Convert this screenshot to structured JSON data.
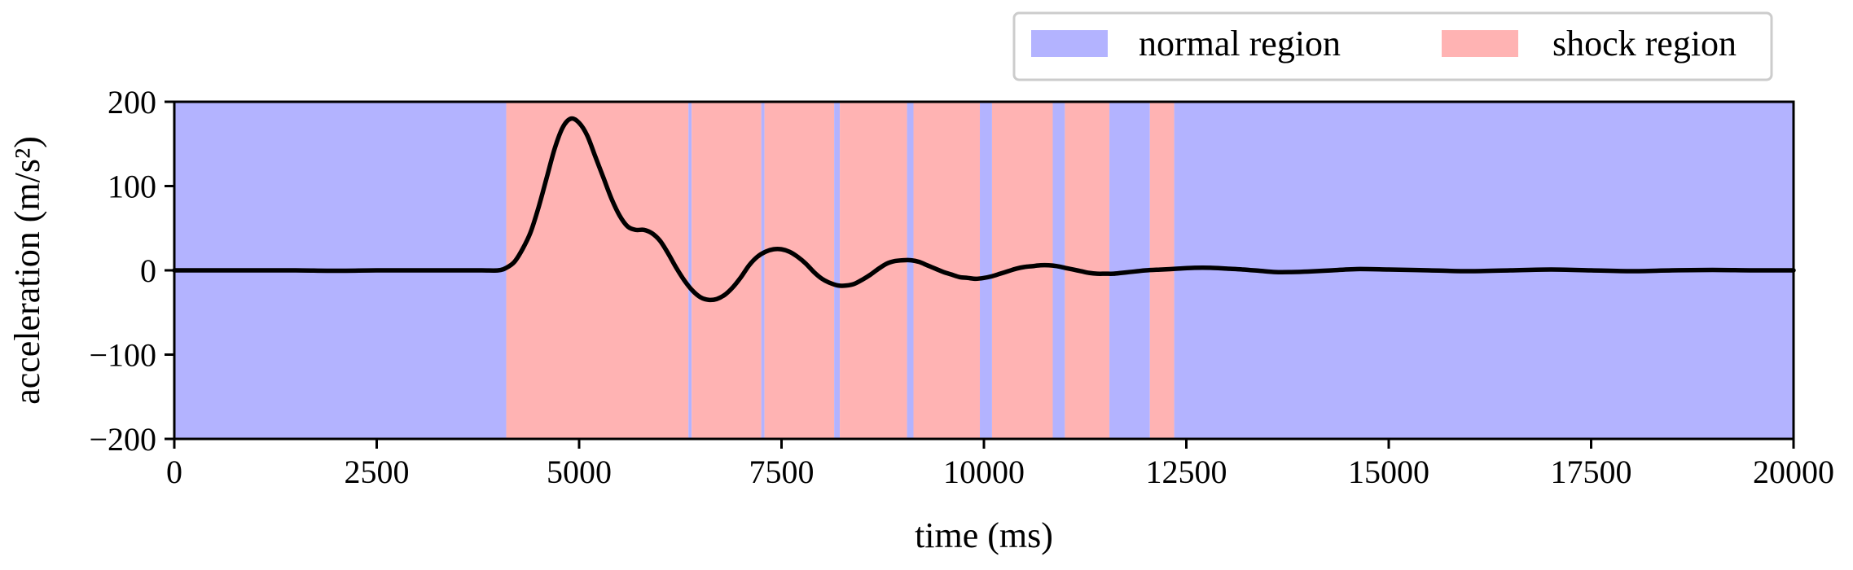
{
  "chart_data": {
    "type": "line",
    "xlabel": "time (ms)",
    "ylabel": "acceleration (m/s²)",
    "xlim": [
      0,
      20000
    ],
    "ylim": [
      -200,
      200
    ],
    "x_ticks": [
      0,
      2500,
      5000,
      7500,
      10000,
      12500,
      15000,
      17500,
      20000
    ],
    "y_ticks": [
      -200,
      -100,
      0,
      100,
      200
    ],
    "x_tick_labels": [
      "0",
      "2500",
      "5000",
      "7500",
      "10000",
      "12500",
      "15000",
      "17500",
      "20000"
    ],
    "y_tick_labels": [
      "−200",
      "−100",
      "0",
      "100",
      "200"
    ],
    "grid": false,
    "legend": {
      "placement": "above-right",
      "entries": [
        {
          "label": "normal region",
          "color": "#b3b3ff"
        },
        {
          "label": "shock region",
          "color": "#ffb3b3"
        }
      ]
    },
    "regions": [
      {
        "type": "normal",
        "start": 0,
        "end": 4100
      },
      {
        "type": "shock",
        "start": 4100,
        "end": 6350
      },
      {
        "type": "normal",
        "start": 6350,
        "end": 6390
      },
      {
        "type": "shock",
        "start": 6390,
        "end": 7250
      },
      {
        "type": "normal",
        "start": 7250,
        "end": 7290
      },
      {
        "type": "shock",
        "start": 7290,
        "end": 8150
      },
      {
        "type": "normal",
        "start": 8150,
        "end": 8220
      },
      {
        "type": "shock",
        "start": 8220,
        "end": 9050
      },
      {
        "type": "normal",
        "start": 9050,
        "end": 9130
      },
      {
        "type": "shock",
        "start": 9130,
        "end": 9950
      },
      {
        "type": "normal",
        "start": 9950,
        "end": 10100
      },
      {
        "type": "shock",
        "start": 10100,
        "end": 10850
      },
      {
        "type": "normal",
        "start": 10850,
        "end": 11000
      },
      {
        "type": "shock",
        "start": 11000,
        "end": 11550
      },
      {
        "type": "normal",
        "start": 11550,
        "end": 12050
      },
      {
        "type": "shock",
        "start": 12050,
        "end": 12350
      },
      {
        "type": "normal",
        "start": 12350,
        "end": 20000
      }
    ],
    "series": [
      {
        "color": "#000000",
        "x": [
          0,
          500,
          1000,
          1500,
          2000,
          2500,
          3000,
          3500,
          3800,
          4000,
          4100,
          4200,
          4300,
          4400,
          4500,
          4600,
          4700,
          4800,
          4900,
          5000,
          5100,
          5200,
          5300,
          5400,
          5500,
          5600,
          5700,
          5800,
          5900,
          6000,
          6100,
          6200,
          6300,
          6400,
          6500,
          6600,
          6700,
          6800,
          6900,
          7000,
          7100,
          7200,
          7300,
          7400,
          7500,
          7600,
          7700,
          7800,
          7900,
          8000,
          8100,
          8200,
          8300,
          8400,
          8500,
          8600,
          8700,
          8800,
          8900,
          9000,
          9100,
          9200,
          9300,
          9400,
          9500,
          9600,
          9700,
          9800,
          9900,
          10000,
          10100,
          10200,
          10300,
          10400,
          10500,
          10600,
          10700,
          10800,
          10900,
          11000,
          11100,
          11200,
          11300,
          11400,
          11500,
          11600,
          11700,
          11800,
          11900,
          12000,
          12200,
          12400,
          12600,
          12800,
          13000,
          13200,
          13400,
          13600,
          13800,
          14000,
          14300,
          14600,
          15000,
          15500,
          16000,
          16500,
          17000,
          17500,
          18000,
          18500,
          19000,
          19500,
          20000
        ],
        "y": [
          0,
          0,
          0,
          0,
          -0.5,
          0,
          0,
          0,
          0,
          0,
          3,
          10,
          25,
          45,
          75,
          110,
          145,
          170,
          180,
          175,
          160,
          135,
          110,
          85,
          65,
          52,
          48,
          48,
          44,
          35,
          20,
          3,
          -12,
          -24,
          -32,
          -35,
          -34,
          -29,
          -20,
          -8,
          6,
          16,
          22,
          25,
          25,
          22,
          16,
          8,
          -2,
          -10,
          -15,
          -18,
          -18,
          -16,
          -11,
          -5,
          2,
          8,
          11,
          12,
          12,
          10,
          6,
          2,
          -2,
          -5,
          -8,
          -9,
          -10,
          -9,
          -7,
          -4,
          -1,
          2,
          4,
          5,
          6,
          6,
          5,
          3,
          1,
          -1,
          -3,
          -4,
          -4,
          -4,
          -3,
          -2,
          -1,
          0,
          1,
          2,
          3,
          3,
          2,
          1,
          -0.5,
          -2,
          -2,
          -1.5,
          0,
          1.5,
          1,
          0,
          -1,
          0,
          1,
          0,
          -1,
          0,
          0.5,
          0,
          0
        ]
      }
    ]
  }
}
